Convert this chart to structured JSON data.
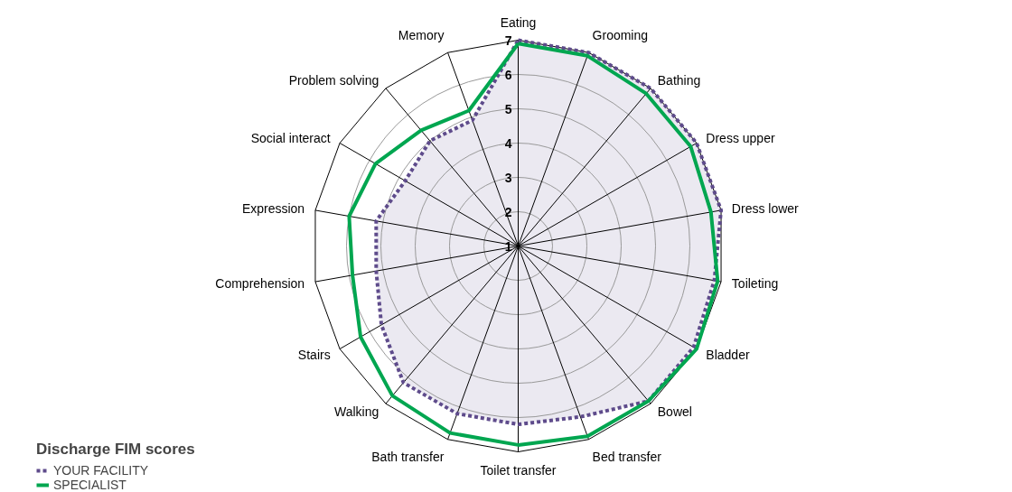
{
  "chart_data": {
    "type": "radar",
    "categories": [
      "Eating",
      "Grooming",
      "Bathing",
      "Dress upper",
      "Dress lower",
      "Toileting",
      "Bladder",
      "Bowel",
      "Bed transfer",
      "Toilet transfer",
      "Bath transfer",
      "Walking",
      "Stairs",
      "Comprehension",
      "Expression",
      "Social interact",
      "Problem solving",
      "Memory"
    ],
    "series": [
      {
        "name": "YOUR FACILITY",
        "type": "area",
        "color": "#5e4b8b",
        "line_style": "dotted",
        "values": [
          7,
          7,
          7,
          7,
          7,
          6.8,
          6.9,
          6.9,
          6.3,
          6.2,
          6.2,
          6.2,
          5.6,
          5.2,
          5.2,
          4.8,
          5.0,
          4.9
        ]
      },
      {
        "name": "SPECIALIST",
        "color": "#00a650",
        "line_style": "solid",
        "values": [
          6.9,
          6.9,
          6.8,
          6.8,
          6.7,
          6.9,
          7,
          6.9,
          6.9,
          6.8,
          6.8,
          6.7,
          6.3,
          5.9,
          6.0,
          5.8,
          5.4,
          5.2
        ]
      }
    ],
    "ylim": [
      1,
      7
    ],
    "yticks": [
      1,
      2,
      3,
      4,
      5,
      6,
      7
    ],
    "grid": true,
    "legend": "bottom left",
    "legend_title": "Discharge FIM scores"
  }
}
